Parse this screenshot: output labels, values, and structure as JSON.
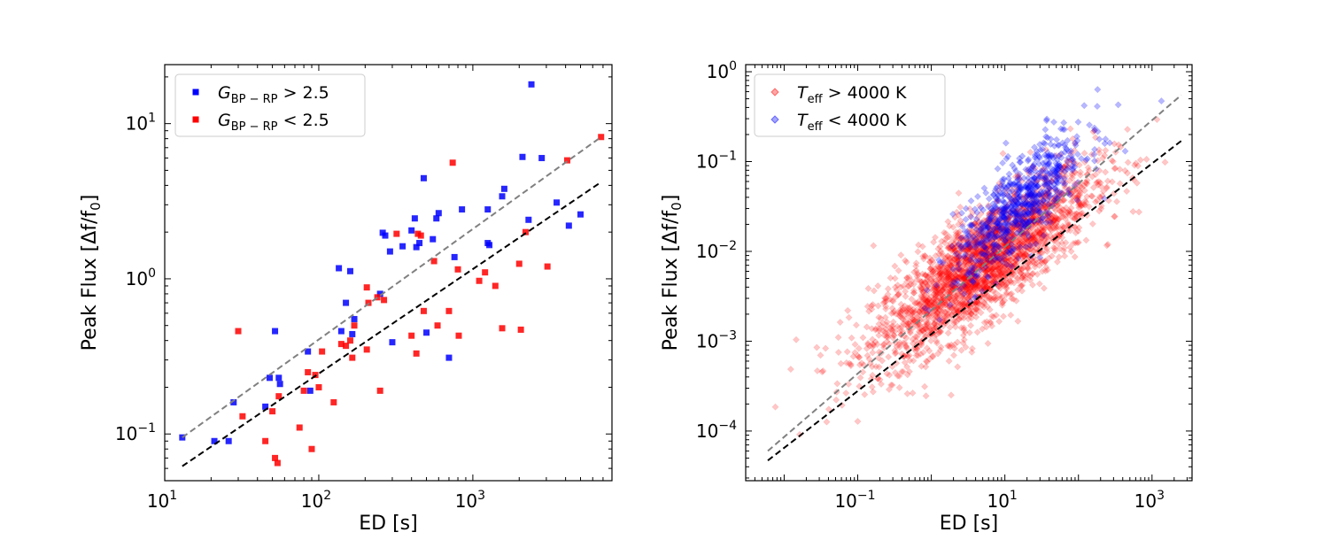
{
  "chart_data": [
    {
      "type": "scatter",
      "xscale": "log",
      "yscale": "log",
      "xlabel": "ED [s]",
      "ylabel": "Peak Flux [Δf/f",
      "ylabel_sub": "0",
      "ylabel_tail": "]",
      "xlim": [
        10,
        8000
      ],
      "ylim": [
        0.05,
        24
      ],
      "xticks": [
        {
          "v": 10,
          "base": "10",
          "exp": "1"
        },
        {
          "v": 100,
          "base": "10",
          "exp": "2"
        },
        {
          "v": 1000,
          "base": "10",
          "exp": "3"
        }
      ],
      "yticks": [
        {
          "v": 0.1,
          "base": "10",
          "exp": "−1"
        },
        {
          "v": 1,
          "base": "10",
          "exp": "0"
        },
        {
          "v": 10,
          "base": "10",
          "exp": "1"
        }
      ],
      "legend": [
        {
          "symbol": "G",
          "sub": "BP − RP",
          "rest": " > 2.5",
          "color": "#0000ff"
        },
        {
          "symbol": "G",
          "sub": "BP − RP",
          "rest": " < 2.5",
          "color": "#ff0000"
        }
      ],
      "fit_lines": [
        {
          "color": "#808080",
          "points": [
            [
              13,
              0.095
            ],
            [
              6800,
              8.2
            ]
          ]
        },
        {
          "color": "#000000",
          "points": [
            [
              13,
              0.062
            ],
            [
              6800,
              4.2
            ]
          ]
        }
      ],
      "series": [
        {
          "name": "G_BP-RP > 2.5",
          "color": "#0000ff",
          "points": [
            [
              13,
              0.095
            ],
            [
              21,
              0.09
            ],
            [
              26,
              0.09
            ],
            [
              28,
              0.16
            ],
            [
              45,
              0.15
            ],
            [
              48,
              0.23
            ],
            [
              52,
              0.46
            ],
            [
              55,
              0.23
            ],
            [
              56,
              0.21
            ],
            [
              85,
              0.34
            ],
            [
              88,
              0.19
            ],
            [
              135,
              1.17
            ],
            [
              150,
              0.7
            ],
            [
              160,
              1.12
            ],
            [
              170,
              0.55
            ],
            [
              165,
              0.44
            ],
            [
              140,
              0.46
            ],
            [
              250,
              0.8
            ],
            [
              260,
              1.98
            ],
            [
              270,
              1.9
            ],
            [
              290,
              1.5
            ],
            [
              300,
              0.39
            ],
            [
              350,
              1.62
            ],
            [
              400,
              2.05
            ],
            [
              420,
              2.45
            ],
            [
              430,
              1.6
            ],
            [
              450,
              1.7
            ],
            [
              480,
              4.45
            ],
            [
              500,
              0.45
            ],
            [
              550,
              1.8
            ],
            [
              580,
              2.45
            ],
            [
              600,
              2.65
            ],
            [
              700,
              0.31
            ],
            [
              760,
              1.38
            ],
            [
              850,
              2.8
            ],
            [
              1250,
              1.7
            ],
            [
              1280,
              1.65
            ],
            [
              1250,
              2.8
            ],
            [
              1550,
              3.4
            ],
            [
              1600,
              3.8
            ],
            [
              2100,
              6.1
            ],
            [
              2300,
              2.4
            ],
            [
              2400,
              17.9
            ],
            [
              2800,
              6.0
            ],
            [
              3500,
              3.1
            ],
            [
              4200,
              2.2
            ],
            [
              5000,
              2.6
            ]
          ]
        },
        {
          "name": "G_BP-RP < 2.5",
          "color": "#ff0000",
          "points": [
            [
              30,
              0.46
            ],
            [
              32,
              0.13
            ],
            [
              45,
              0.09
            ],
            [
              50,
              0.14
            ],
            [
              52,
              0.07
            ],
            [
              55,
              0.175
            ],
            [
              54,
              0.065
            ],
            [
              75,
              0.11
            ],
            [
              80,
              0.19
            ],
            [
              85,
              0.25
            ],
            [
              90,
              0.08
            ],
            [
              95,
              0.24
            ],
            [
              100,
              0.2
            ],
            [
              105,
              0.34
            ],
            [
              125,
              0.16
            ],
            [
              140,
              0.38
            ],
            [
              150,
              0.37
            ],
            [
              160,
              0.4
            ],
            [
              165,
              0.31
            ],
            [
              170,
              0.5
            ],
            [
              205,
              0.35
            ],
            [
              205,
              0.88
            ],
            [
              210,
              0.7
            ],
            [
              240,
              0.76
            ],
            [
              250,
              0.19
            ],
            [
              265,
              0.73
            ],
            [
              320,
              1.95
            ],
            [
              400,
              0.43
            ],
            [
              430,
              0.33
            ],
            [
              440,
              1.95
            ],
            [
              460,
              1.9
            ],
            [
              480,
              0.62
            ],
            [
              560,
              1.3
            ],
            [
              590,
              0.5
            ],
            [
              700,
              0.62
            ],
            [
              740,
              5.6
            ],
            [
              800,
              1.15
            ],
            [
              810,
              0.43
            ],
            [
              1100,
              0.97
            ],
            [
              1200,
              1.1
            ],
            [
              1400,
              0.9
            ],
            [
              1550,
              0.48
            ],
            [
              2000,
              1.25
            ],
            [
              2050,
              0.47
            ],
            [
              2200,
              2.0
            ],
            [
              3050,
              1.2
            ],
            [
              4100,
              5.8
            ],
            [
              6800,
              8.2
            ]
          ]
        }
      ]
    },
    {
      "type": "scatter",
      "xscale": "log",
      "yscale": "log",
      "xlabel": "ED [s]",
      "ylabel": "Peak Flux [Δf/f",
      "ylabel_sub": "0",
      "ylabel_tail": "]",
      "xlim": [
        0.003,
        3500
      ],
      "ylim": [
        2.8e-05,
        1.2
      ],
      "xticks": [
        {
          "v": 0.1,
          "base": "10",
          "exp": "−1"
        },
        {
          "v": 10,
          "base": "10",
          "exp": "1"
        },
        {
          "v": 1000,
          "base": "10",
          "exp": "3"
        }
      ],
      "yticks": [
        {
          "v": 0.0001,
          "base": "10",
          "exp": "−4"
        },
        {
          "v": 0.001,
          "base": "10",
          "exp": "−3"
        },
        {
          "v": 0.01,
          "base": "10",
          "exp": "−2"
        },
        {
          "v": 0.1,
          "base": "10",
          "exp": "−1"
        },
        {
          "v": 1,
          "base": "10",
          "exp": "0"
        }
      ],
      "legend": [
        {
          "symbol": "T",
          "sub": "eff",
          "rest": " > 4000 K",
          "color": "#ff0000"
        },
        {
          "symbol": "T",
          "sub": "eff",
          "rest": " < 4000 K",
          "color": "#0000ff"
        }
      ],
      "fit_lines": [
        {
          "color": "#808080",
          "points": [
            [
              0.006,
              6e-05
            ],
            [
              2500,
              0.55
            ]
          ]
        },
        {
          "color": "#000000",
          "points": [
            [
              0.006,
              4.7e-05
            ],
            [
              2500,
              0.17
            ]
          ]
        }
      ],
      "clouds": [
        {
          "name": "T_eff > 4000 K",
          "color": "#ff0000",
          "opacity": 0.22,
          "count": 2600,
          "logx_mean": 0.7,
          "logx_sd": 0.75,
          "slope": 0.58,
          "intercept": -2.55,
          "scatter_sd": 0.3,
          "logx_min": -2.3,
          "logx_max": 3.3
        },
        {
          "name": "T_eff < 4000 K",
          "color": "#0000ff",
          "opacity": 0.28,
          "count": 700,
          "logx_mean": 1.2,
          "logx_sd": 0.45,
          "slope": 0.72,
          "intercept": -2.35,
          "scatter_sd": 0.25,
          "logx_min": -0.3,
          "logx_max": 3.2
        }
      ]
    }
  ]
}
